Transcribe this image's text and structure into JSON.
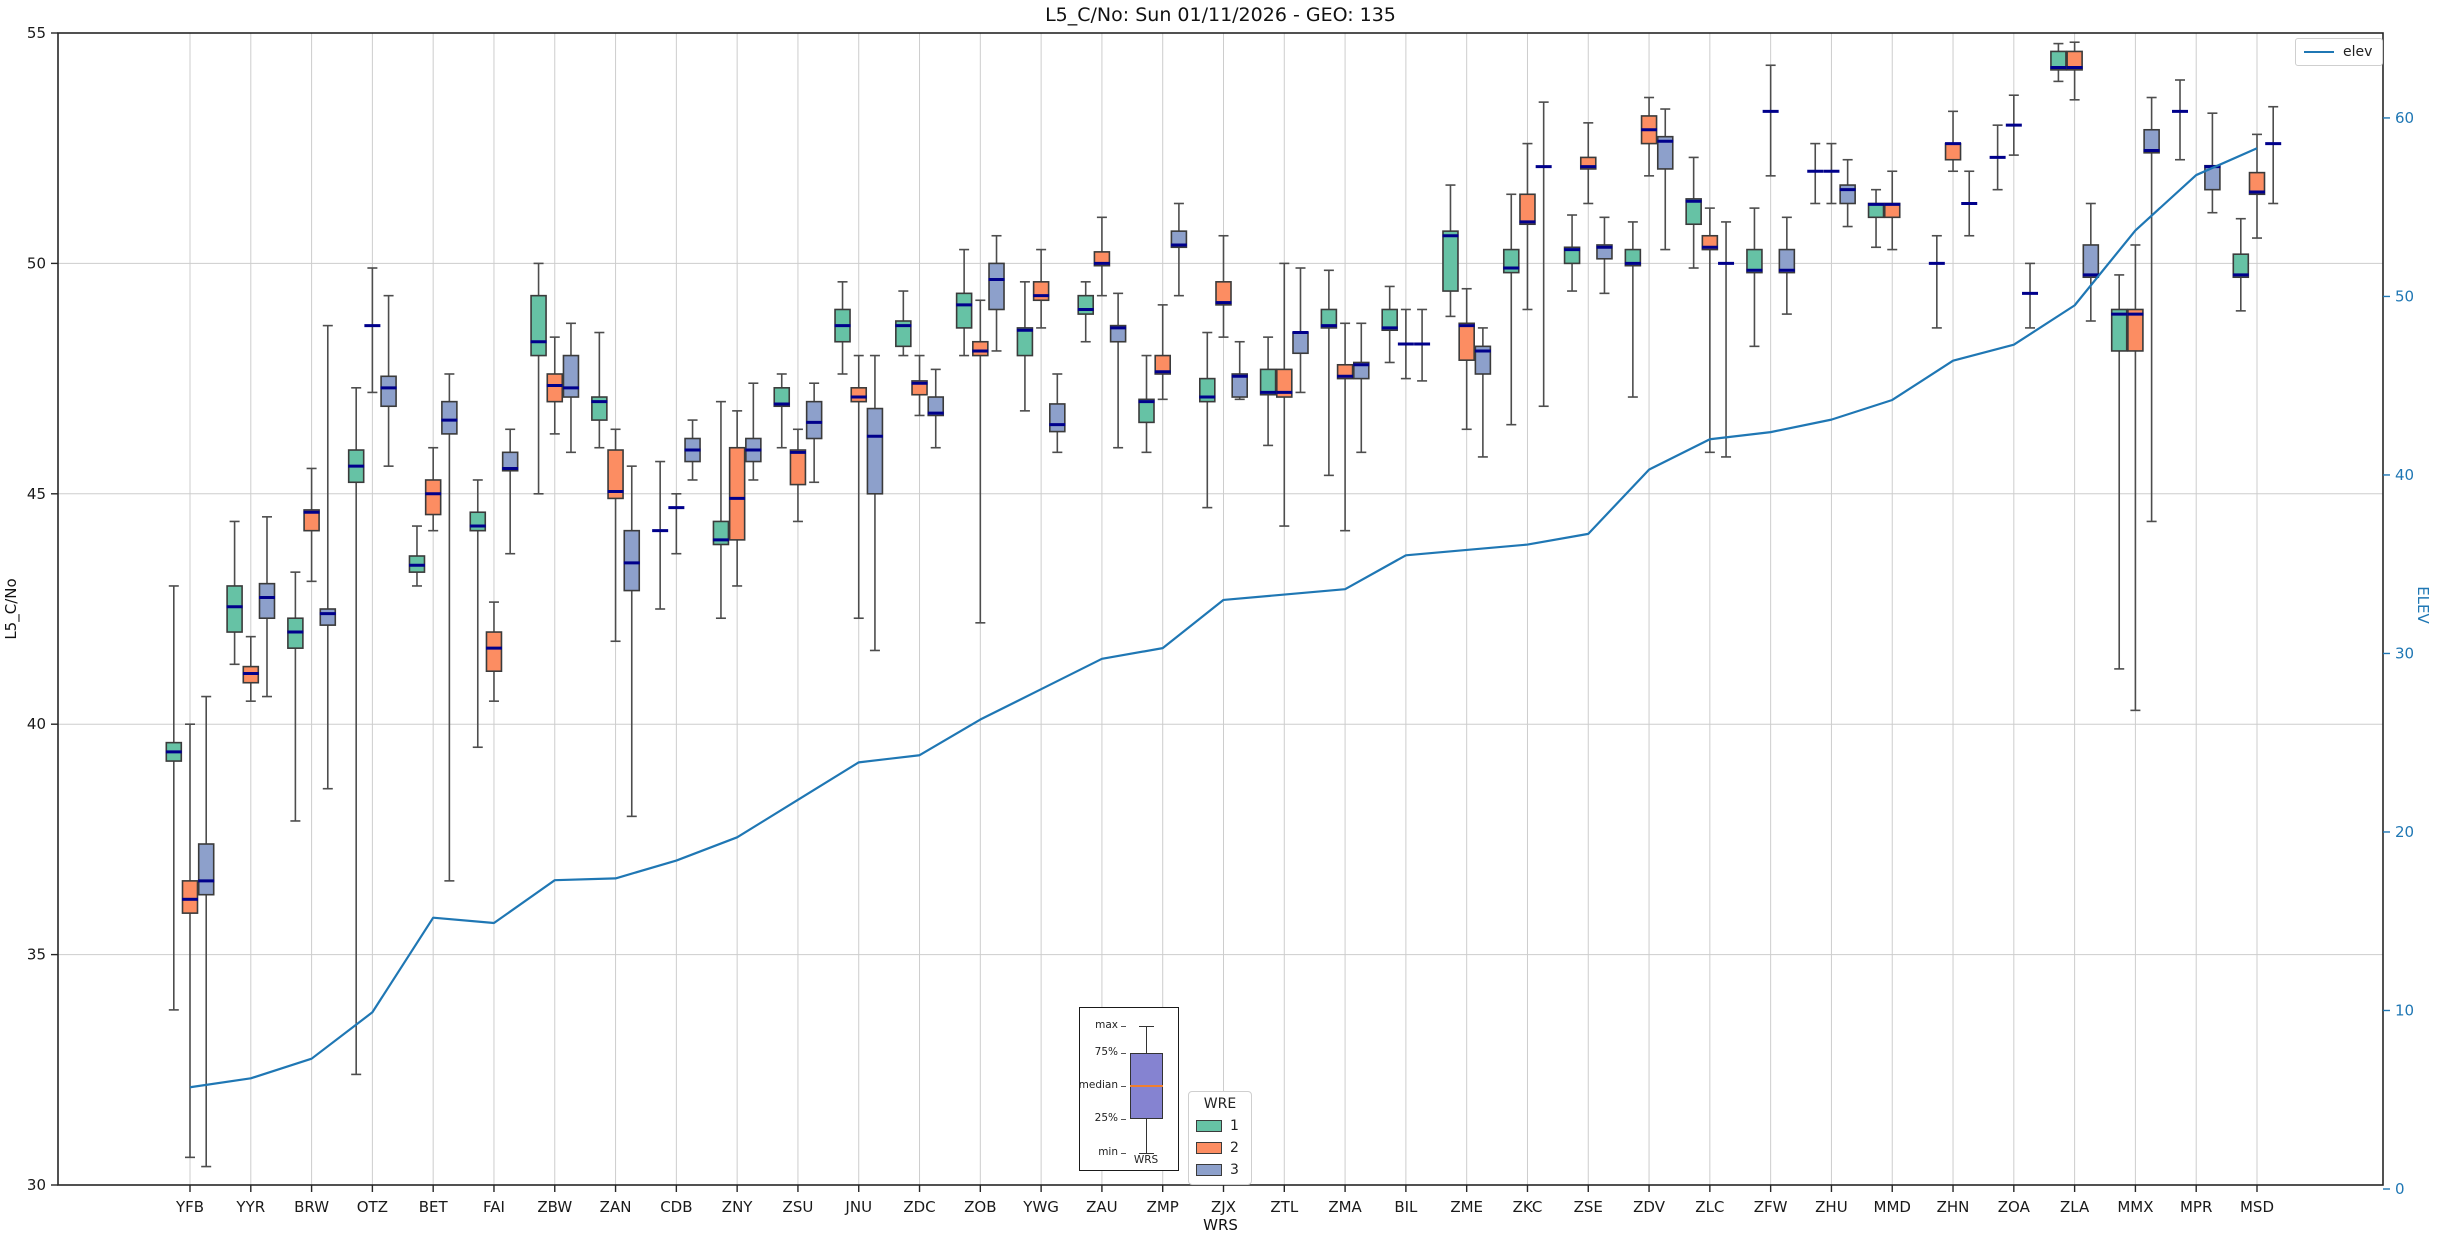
{
  "title": "L5_C/No: Sun 01/11/2026 - GEO: 135",
  "legend_elev_label": "elev",
  "legend_wre_title": "WRE",
  "inset": {
    "max": "max",
    "p75": "75%",
    "median": "median",
    "p25": "25%",
    "min": "min",
    "xlabel": "WRS"
  },
  "chart_data": {
    "type": "boxplot+line",
    "title": "L5_C/No: Sun 01/11/2026 - GEO: 135",
    "xlabel": "WRS",
    "grid": true,
    "left_axis": {
      "label": "L5_C/No",
      "min": 30,
      "max": 55,
      "ticks": [
        30,
        35,
        40,
        45,
        50,
        55
      ]
    },
    "right_axis": {
      "label": "ELEV",
      "color": "#1f77b4",
      "ticks": [
        0,
        10,
        20,
        30,
        40,
        50,
        60
      ]
    },
    "median_color": "#00008b",
    "whisker_color": "#4d4d4d",
    "box_edge_color": "#3b3b3b",
    "categories": [
      "YFB",
      "YYR",
      "BRW",
      "OTZ",
      "BET",
      "FAI",
      "ZBW",
      "ZAN",
      "CDB",
      "ZNY",
      "ZSU",
      "JNU",
      "ZDC",
      "ZOB",
      "YWG",
      "ZAU",
      "ZMP",
      "ZJX",
      "ZTL",
      "ZMA",
      "BIL",
      "ZME",
      "ZKC",
      "ZSE",
      "ZDV",
      "ZLC",
      "ZFW",
      "ZHU",
      "MMD",
      "ZHN",
      "ZOA",
      "ZLA",
      "MMX",
      "MPR",
      "MSD"
    ],
    "series": [
      {
        "label": "1",
        "color": "#66c2a5",
        "boxes": [
          [
            33.8,
            39.2,
            39.4,
            39.6,
            43.0
          ],
          [
            41.3,
            42.0,
            42.55,
            43.0,
            44.4
          ],
          [
            37.9,
            41.65,
            42.0,
            42.3,
            43.3
          ],
          [
            32.4,
            45.25,
            45.6,
            45.95,
            47.3
          ],
          [
            43.0,
            43.3,
            43.45,
            43.65,
            44.3
          ],
          [
            39.5,
            44.2,
            44.3,
            44.6,
            45.3
          ],
          [
            45.0,
            48.0,
            48.3,
            49.3,
            50.0
          ],
          [
            46.0,
            46.6,
            47.0,
            47.1,
            48.5
          ],
          [
            42.5,
            44.2,
            44.2,
            44.2,
            45.7
          ],
          [
            42.3,
            43.9,
            44.0,
            44.4,
            47.0
          ],
          [
            46.0,
            46.9,
            46.95,
            47.3,
            47.6
          ],
          [
            47.6,
            48.3,
            48.65,
            49.0,
            49.6
          ],
          [
            48.0,
            48.2,
            48.65,
            48.75,
            49.4
          ],
          [
            48.0,
            48.6,
            49.1,
            49.35,
            50.3
          ],
          [
            46.8,
            48.0,
            48.55,
            48.6,
            49.6
          ],
          [
            48.3,
            48.9,
            49.0,
            49.3,
            49.6
          ],
          [
            45.9,
            46.55,
            47.0,
            47.05,
            48.0
          ],
          [
            44.7,
            47.0,
            47.1,
            47.5,
            48.5
          ],
          [
            46.05,
            47.15,
            47.2,
            47.7,
            48.4
          ],
          [
            45.4,
            48.6,
            48.65,
            49.0,
            49.85
          ],
          [
            47.85,
            48.55,
            48.6,
            49.0,
            49.5
          ],
          [
            48.85,
            49.4,
            50.6,
            50.7,
            51.7
          ],
          [
            46.5,
            49.8,
            49.9,
            50.3,
            51.5
          ],
          [
            49.4,
            50.0,
            50.3,
            50.35,
            51.05
          ],
          [
            47.1,
            49.95,
            50.0,
            50.3,
            50.9
          ],
          [
            49.9,
            50.85,
            51.35,
            51.4,
            52.3
          ],
          [
            48.2,
            49.8,
            49.85,
            50.3,
            51.2
          ],
          [
            51.3,
            52.0,
            52.0,
            52.0,
            52.6
          ],
          [
            50.35,
            51.0,
            51.28,
            51.3,
            51.6
          ],
          [
            48.6,
            50.0,
            50.0,
            50.0,
            50.6
          ],
          [
            51.6,
            52.3,
            52.3,
            52.3,
            53.0
          ],
          [
            53.95,
            54.2,
            54.25,
            54.6,
            54.77
          ],
          [
            41.2,
            48.1,
            48.9,
            49.0,
            49.75
          ],
          [
            52.25,
            53.3,
            53.3,
            53.3,
            53.98
          ],
          [
            48.97,
            49.7,
            49.75,
            50.2,
            50.97
          ]
        ]
      },
      {
        "label": "2",
        "color": "#fc8d62",
        "boxes": [
          [
            30.6,
            35.9,
            36.2,
            36.6,
            40.0
          ],
          [
            40.5,
            40.9,
            41.1,
            41.25,
            41.9
          ],
          [
            43.1,
            44.2,
            44.6,
            44.65,
            45.55
          ],
          [
            47.2,
            48.65,
            48.65,
            48.65,
            49.9
          ],
          [
            44.2,
            44.55,
            45.0,
            45.3,
            46.0
          ],
          [
            40.5,
            41.15,
            41.65,
            42.0,
            42.65
          ],
          [
            46.3,
            47.0,
            47.35,
            47.6,
            48.4
          ],
          [
            41.8,
            44.9,
            45.05,
            45.95,
            46.4
          ],
          [
            43.7,
            44.7,
            44.7,
            44.7,
            45.0
          ],
          [
            43.0,
            44.0,
            44.9,
            46.0,
            46.8
          ],
          [
            44.4,
            45.2,
            45.9,
            45.95,
            46.4
          ],
          [
            42.3,
            47.0,
            47.1,
            47.3,
            48.0
          ],
          [
            46.7,
            47.15,
            47.4,
            47.45,
            48.0
          ],
          [
            42.2,
            48.0,
            48.1,
            48.3,
            49.2
          ],
          [
            48.6,
            49.2,
            49.3,
            49.6,
            50.3
          ],
          [
            49.3,
            49.95,
            50.0,
            50.25,
            51.0
          ],
          [
            47.05,
            47.6,
            47.65,
            48.0,
            49.1
          ],
          [
            48.4,
            49.1,
            49.15,
            49.6,
            50.6
          ],
          [
            44.3,
            47.1,
            47.2,
            47.7,
            50.0
          ],
          [
            44.2,
            47.5,
            47.55,
            47.8,
            48.7
          ],
          [
            47.5,
            48.25,
            48.25,
            48.25,
            49.0
          ],
          [
            46.4,
            47.9,
            48.65,
            48.7,
            49.45
          ],
          [
            49.0,
            50.85,
            50.9,
            51.5,
            52.6
          ],
          [
            51.3,
            52.05,
            52.1,
            52.3,
            53.05
          ],
          [
            51.9,
            52.6,
            52.9,
            53.2,
            53.6
          ],
          [
            45.9,
            50.3,
            50.35,
            50.6,
            51.2
          ],
          [
            51.9,
            53.3,
            53.3,
            53.3,
            54.3
          ],
          [
            51.3,
            52.0,
            52.0,
            52.0,
            52.6
          ],
          [
            50.3,
            51.0,
            51.28,
            51.3,
            52.0
          ],
          [
            52.0,
            52.25,
            52.6,
            52.6,
            53.3
          ],
          [
            52.35,
            53.0,
            53.0,
            53.0,
            53.65
          ],
          [
            53.55,
            54.2,
            54.25,
            54.6,
            54.8
          ],
          [
            40.3,
            48.1,
            48.9,
            49.0,
            50.4
          ],
          null,
          [
            50.55,
            51.5,
            51.55,
            51.97,
            52.8
          ]
        ]
      },
      {
        "label": "3",
        "color": "#8da0cb",
        "boxes": [
          [
            30.4,
            36.3,
            36.6,
            37.4,
            40.6
          ],
          [
            40.6,
            42.3,
            42.75,
            43.05,
            44.5
          ],
          [
            38.6,
            42.15,
            42.4,
            42.5,
            48.65
          ],
          [
            45.6,
            46.9,
            47.3,
            47.55,
            49.3
          ],
          [
            36.6,
            46.3,
            46.6,
            47.0,
            47.6
          ],
          [
            43.7,
            45.5,
            45.55,
            45.9,
            46.4
          ],
          [
            45.9,
            47.1,
            47.3,
            48.0,
            48.7
          ],
          [
            38.0,
            42.9,
            43.5,
            44.2,
            45.6
          ],
          [
            45.3,
            45.7,
            45.95,
            46.2,
            46.6
          ],
          [
            45.3,
            45.7,
            45.95,
            46.2,
            47.4
          ],
          [
            45.25,
            46.2,
            46.55,
            47.0,
            47.4
          ],
          [
            41.6,
            45.0,
            46.25,
            46.85,
            48.0
          ],
          [
            46.0,
            46.7,
            46.75,
            47.1,
            47.7
          ],
          [
            48.1,
            49.0,
            49.65,
            50.0,
            50.6
          ],
          [
            45.9,
            46.35,
            46.5,
            46.95,
            47.6
          ],
          [
            46.0,
            48.3,
            48.6,
            48.65,
            49.35
          ],
          [
            49.3,
            50.35,
            50.4,
            50.7,
            51.3
          ],
          [
            47.05,
            47.1,
            47.55,
            47.6,
            48.3
          ],
          [
            47.2,
            48.05,
            48.5,
            48.5,
            49.9
          ],
          [
            45.9,
            47.5,
            47.8,
            47.85,
            48.7
          ],
          [
            47.45,
            48.25,
            48.25,
            48.25,
            49.0
          ],
          [
            45.8,
            47.6,
            48.1,
            48.2,
            48.6
          ],
          [
            46.9,
            52.1,
            52.1,
            52.1,
            53.5
          ],
          [
            49.35,
            50.1,
            50.35,
            50.4,
            51.0
          ],
          [
            50.3,
            52.05,
            52.65,
            52.75,
            53.35
          ],
          [
            45.8,
            50.0,
            50.0,
            50.0,
            50.9
          ],
          [
            48.9,
            49.8,
            49.85,
            50.3,
            51.0
          ],
          [
            50.8,
            51.3,
            51.6,
            51.7,
            52.25
          ],
          null,
          [
            50.6,
            51.3,
            51.3,
            51.3,
            52.0
          ],
          [
            48.6,
            49.35,
            49.35,
            49.35,
            50.0
          ],
          [
            48.75,
            49.7,
            49.75,
            50.4,
            51.3
          ],
          [
            44.4,
            52.4,
            52.45,
            52.9,
            53.6
          ],
          [
            51.1,
            51.6,
            52.1,
            52.12,
            53.26
          ],
          [
            51.3,
            52.6,
            52.6,
            52.6,
            53.4
          ]
        ]
      }
    ],
    "line": {
      "label": "elev",
      "color": "#1f77b4",
      "axis": "right",
      "values": [
        5.7,
        6.2,
        7.3,
        9.9,
        15.2,
        14.9,
        17.3,
        17.4,
        18.4,
        19.7,
        21.8,
        23.9,
        24.3,
        26.3,
        28.0,
        29.7,
        30.3,
        33.0,
        33.3,
        33.6,
        35.5,
        35.8,
        36.1,
        36.7,
        40.3,
        42.0,
        42.4,
        43.1,
        44.2,
        46.4,
        47.3,
        49.5,
        53.7,
        56.8,
        58.3
      ]
    },
    "legend_position": "lower center",
    "line_legend_position": "upper right"
  }
}
